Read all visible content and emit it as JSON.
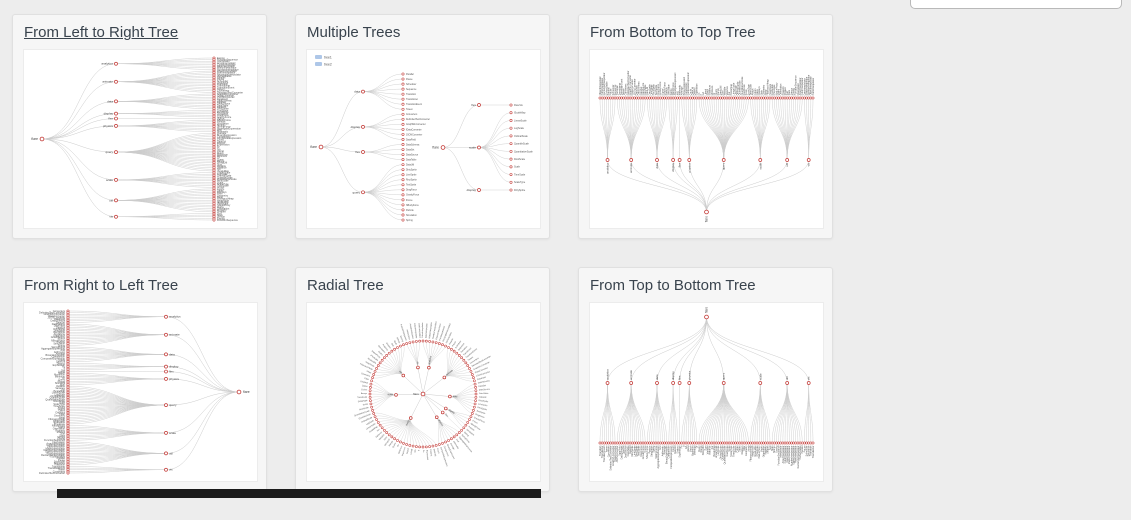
{
  "search_box": {
    "placeholder": "",
    "value": ""
  },
  "cards": [
    {
      "title": "From Left to Right Tree",
      "layout": "LR",
      "hovered": true
    },
    {
      "title": "Multiple Trees",
      "layout": "multi",
      "hovered": false
    },
    {
      "title": "From Bottom to Top Tree",
      "layout": "BT",
      "hovered": false
    },
    {
      "title": "From Right to Left Tree",
      "layout": "RL",
      "hovered": false
    },
    {
      "title": "Radial Tree",
      "layout": "radial",
      "hovered": false
    },
    {
      "title": "From Top to Bottom Tree",
      "layout": "TB",
      "hovered": false
    }
  ],
  "chart_data": {
    "type": "tree-gallery",
    "root": "flare",
    "legend": [
      "tree1",
      "tree2"
    ],
    "branches": [
      {
        "name": "analytics",
        "leaves": 8
      },
      {
        "name": "animate",
        "leaves": 14
      },
      {
        "name": "data",
        "leaves": 10
      },
      {
        "name": "display",
        "leaves": 5
      },
      {
        "name": "flex",
        "leaves": 1
      },
      {
        "name": "physics",
        "leaves": 8
      },
      {
        "name": "query",
        "leaves": 24
      },
      {
        "name": "scale",
        "leaves": 10
      },
      {
        "name": "util",
        "leaves": 15
      },
      {
        "name": "vis",
        "leaves": 5
      }
    ],
    "multi": {
      "tree1": {
        "root": "flare",
        "branches": [
          {
            "name": "data",
            "leaves": 8
          },
          {
            "name": "display",
            "leaves": 6
          },
          {
            "name": "flex",
            "leaves": 4
          },
          {
            "name": "query",
            "leaves": 12
          }
        ]
      },
      "tree2": {
        "root": "flare",
        "branches": [
          {
            "name": "flex",
            "leaves": 1
          },
          {
            "name": "scale",
            "leaves": 10
          },
          {
            "name": "display",
            "leaves": 1
          }
        ],
        "leaf_names": [
          "FlareVis",
          "IScaleMap",
          "LinearScale",
          "LogScale",
          "OrdinalScale",
          "QuantileScale",
          "QuantitativeScale",
          "RootScale",
          "Scale",
          "TimeScale",
          "ScaleType",
          "DirtySprite"
        ]
      }
    },
    "leaf_names": [
      "Easing",
      "FunctionSequence",
      "Interpolator",
      "ArrayInterpolator",
      "ColorInterpolator",
      "DateInterpolator",
      "MatrixInterpolator",
      "NumberInterpolator",
      "ObjectInterpolator",
      "PointInterpolator",
      "RectangleInterpolator",
      "ISchedulable",
      "Parallel",
      "Pause",
      "Scheduler",
      "Sequence",
      "Transition",
      "Transitioner",
      "TransitionEvent",
      "Tween",
      "Converters",
      "DelimitedTextConverter",
      "GraphMLConverter",
      "IDataConverter",
      "JSONConverter",
      "DataField",
      "DataSchema",
      "DataSet",
      "DataSource",
      "DataTable",
      "DataUtil",
      "DirtySprite",
      "LineSprite",
      "RectSprite",
      "TextSprite",
      "DragForce",
      "GravityForce",
      "IForce",
      "NBodyForce",
      "Particle",
      "Simulation",
      "Spring",
      "SpringForce",
      "AggregateExpression",
      "And",
      "Arithmetic",
      "Average",
      "BinaryExpression",
      "Comparison",
      "CompositeExpression",
      "Count",
      "DateUtil",
      "Distinct",
      "Expression",
      "Fn",
      "If",
      "IsA",
      "Literal",
      "Match",
      "Maximum",
      "Minimum",
      "Or",
      "Query",
      "Range",
      "StringUtil",
      "Sum",
      "Variable",
      "Variance",
      "Xor",
      "IScaleMap",
      "LinearScale",
      "LogScale",
      "OrdinalScale",
      "QuantileScale",
      "QuantitativeScale",
      "RootScale",
      "Scale",
      "ScaleType",
      "TimeScale",
      "Arrays",
      "Colors",
      "Dates",
      "Displays",
      "Filter",
      "Geometry",
      "Heap",
      "FibonacciHeap",
      "HeapNode",
      "IEvaluable",
      "IPredicate",
      "IValueProxy",
      "Maths",
      "Orientation",
      "Property",
      "Shapes",
      "Sort",
      "Stats",
      "Strings"
    ],
    "colors": {
      "node_stroke": "#c23531",
      "link": "#cccccc",
      "label": "#555555",
      "branch_label": "#444444",
      "legend_swatch": "#aec7e8"
    }
  }
}
